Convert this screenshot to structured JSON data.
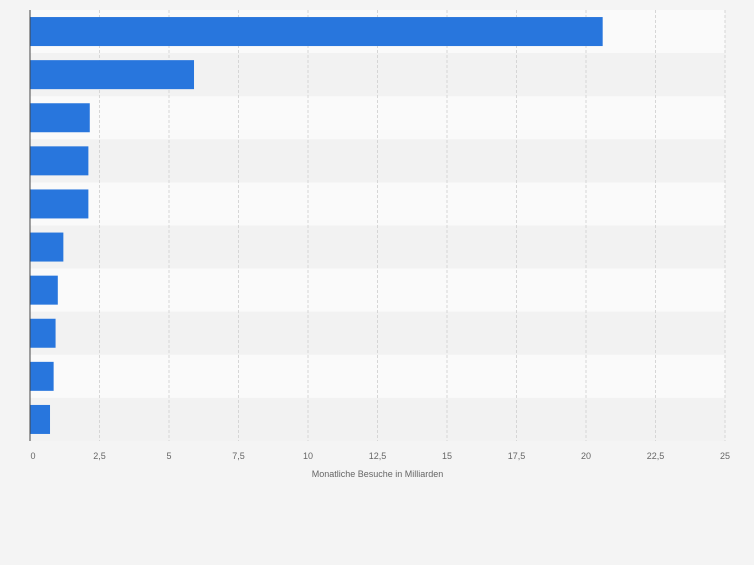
{
  "chart_data": {
    "type": "bar",
    "orientation": "horizontal",
    "categories": [
      "",
      "",
      "",
      "",
      "",
      "",
      "",
      "",
      "",
      ""
    ],
    "values": [
      20.6,
      5.9,
      2.15,
      2.1,
      2.1,
      1.2,
      1.0,
      0.92,
      0.85,
      0.72
    ],
    "xlabel": "Monatliche Besuche in Milliarden",
    "xlim": [
      0,
      25
    ],
    "ticks": [
      0,
      2.5,
      5,
      7.5,
      10,
      12.5,
      15,
      17.5,
      20,
      22.5,
      25
    ],
    "tick_labels": [
      "0",
      "2,5",
      "5",
      "7,5",
      "10",
      "12,5",
      "15",
      "17,5",
      "20",
      "22,5",
      "25"
    ],
    "grid": "vertical dashed",
    "colors": {
      "bar": "#2876dd",
      "row_even": "#fafafa",
      "row_odd": "#f2f2f2",
      "grid": "#d6d6d6",
      "axis": "#444444",
      "text": "#666666"
    }
  }
}
